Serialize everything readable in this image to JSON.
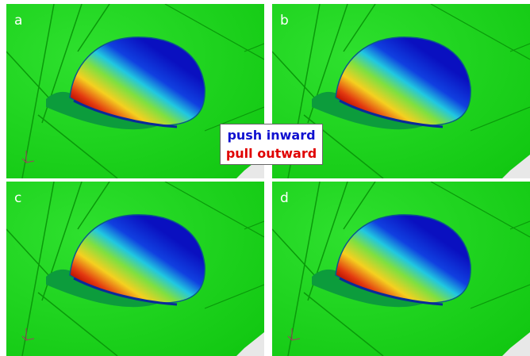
{
  "panels": [
    {
      "label": "a"
    },
    {
      "label": "b"
    },
    {
      "label": "c"
    },
    {
      "label": "d"
    }
  ],
  "legend": {
    "push": "push inward",
    "pull": "pull outward"
  }
}
